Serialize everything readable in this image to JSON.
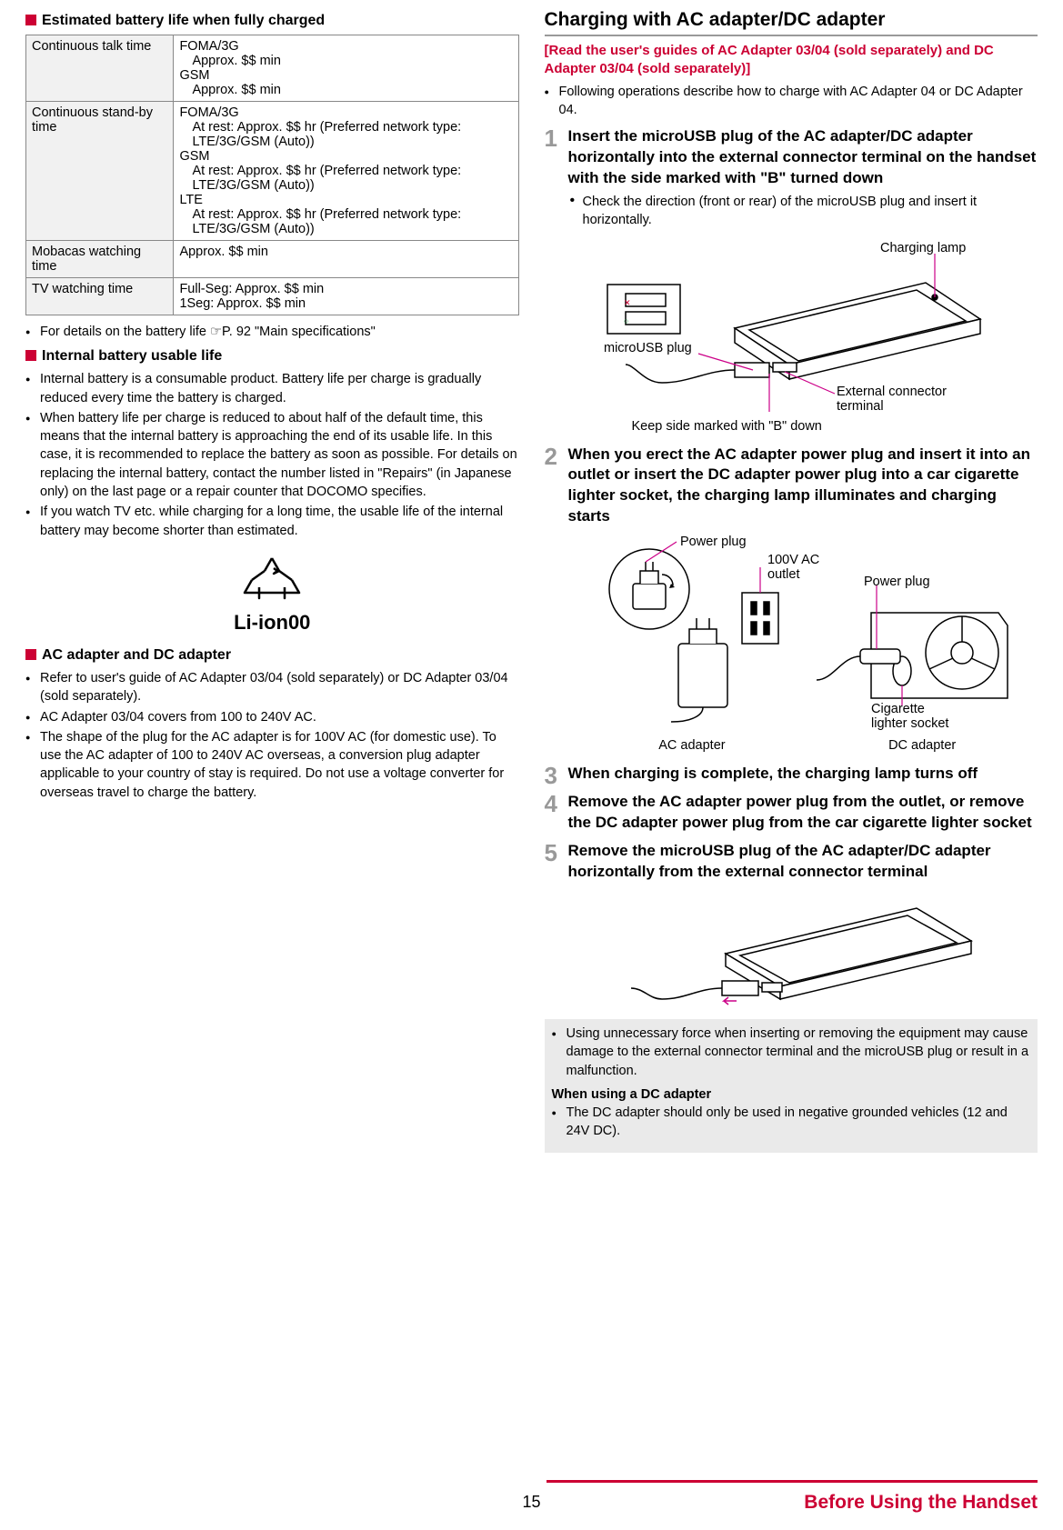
{
  "left": {
    "h1": "Estimated battery life when fully charged",
    "table": {
      "rows": [
        {
          "label": "Continuous talk time",
          "lines": [
            "FOMA/3G",
            "  Approx. $$ min",
            "GSM",
            "  Approx. $$ min"
          ]
        },
        {
          "label": "Continuous stand-by time",
          "lines": [
            "FOMA/3G",
            "  At rest: Approx. $$ hr (Preferred network type: LTE/3G/GSM (Auto))",
            "GSM",
            "  At rest: Approx. $$ hr (Preferred network type: LTE/3G/GSM (Auto))",
            "LTE",
            "  At rest: Approx. $$ hr (Preferred network type: LTE/3G/GSM (Auto))"
          ]
        },
        {
          "label": "Mobacas watching time",
          "lines": [
            "Approx. $$ min"
          ]
        },
        {
          "label": "TV watching time",
          "lines": [
            "Full-Seg: Approx. $$ min",
            "1Seg: Approx. $$ min"
          ]
        }
      ]
    },
    "bullet_details": "For details on the battery life ☞P. 92 \"Main specifications\"",
    "h2": "Internal battery usable life",
    "bullets2": [
      "Internal battery is a consumable product. Battery life per charge is gradually reduced every time the battery is charged.",
      "When battery life per charge is reduced to about half of the default time, this means that the internal battery is approaching the end of its usable life. In this case, it is recommended to replace the battery as soon as possible. For details on replacing the internal battery, contact the number listed in \"Repairs\" (in Japanese only) on the last page or a repair counter that DOCOMO specifies.",
      "If you watch TV etc. while charging for a long time, the usable life of the internal battery may become shorter than estimated."
    ],
    "liion": "Li-ion00",
    "h3": "AC adapter and DC adapter",
    "bullets3": [
      "Refer to user's guide of AC Adapter 03/04 (sold separately) or DC Adapter 03/04 (sold separately).",
      "AC Adapter 03/04 covers from 100 to 240V AC.",
      "The shape of the plug for the AC adapter is for 100V AC (for domestic use). To use the AC adapter of 100 to 240V AC overseas, a conversion plug adapter applicable to your country of stay is required. Do not use a voltage converter for overseas travel to charge the battery."
    ]
  },
  "right": {
    "title": "Charging with AC adapter/DC adapter",
    "notice": "[Read the user's guides of AC Adapter 03/04 (sold separately) and DC Adapter 03/04 (sold separately)]",
    "intro": "Following operations describe how to charge with AC Adapter 04 or DC Adapter 04.",
    "steps": [
      {
        "n": "1",
        "title": "Insert the microUSB plug of the AC adapter/DC adapter horizontally into the external connector terminal on the handset with the side marked with \"B\" turned down",
        "sub": [
          "Check the direction (front or rear) of the microUSB plug and insert it horizontally."
        ]
      },
      {
        "n": "2",
        "title": "When you erect the AC adapter power plug and insert it into an outlet or insert the DC adapter power plug into a car cigarette lighter socket, the charging lamp illuminates and charging starts"
      },
      {
        "n": "3",
        "title": "When charging is complete, the charging lamp turns off"
      },
      {
        "n": "4",
        "title": "Remove the AC adapter power plug from the outlet, or remove the DC adapter power plug from the car cigarette lighter socket"
      },
      {
        "n": "5",
        "title": "Remove the microUSB plug of the AC adapter/DC adapter horizontally from the external connector terminal"
      }
    ],
    "diag1": {
      "charging_lamp": "Charging lamp",
      "microusb": "microUSB plug",
      "ext_conn": "External connector terminal",
      "keep_b": "Keep side marked with \"B\" down"
    },
    "diag2": {
      "power_plug": "Power plug",
      "outlet": "100V AC outlet",
      "cig": "Cigarette lighter socket",
      "ac": "AC adapter",
      "dc": "DC adapter"
    },
    "note": {
      "b1": "Using unnecessary force when inserting or removing the equipment may cause damage to the external connector terminal and the microUSB plug or result in a malfunction.",
      "sub": "When using a DC adapter",
      "b2": "The DC adapter should only be used in negative grounded vehicles (12 and 24V DC)."
    }
  },
  "footer": {
    "page": "15",
    "section": "Before Using the Handset"
  }
}
